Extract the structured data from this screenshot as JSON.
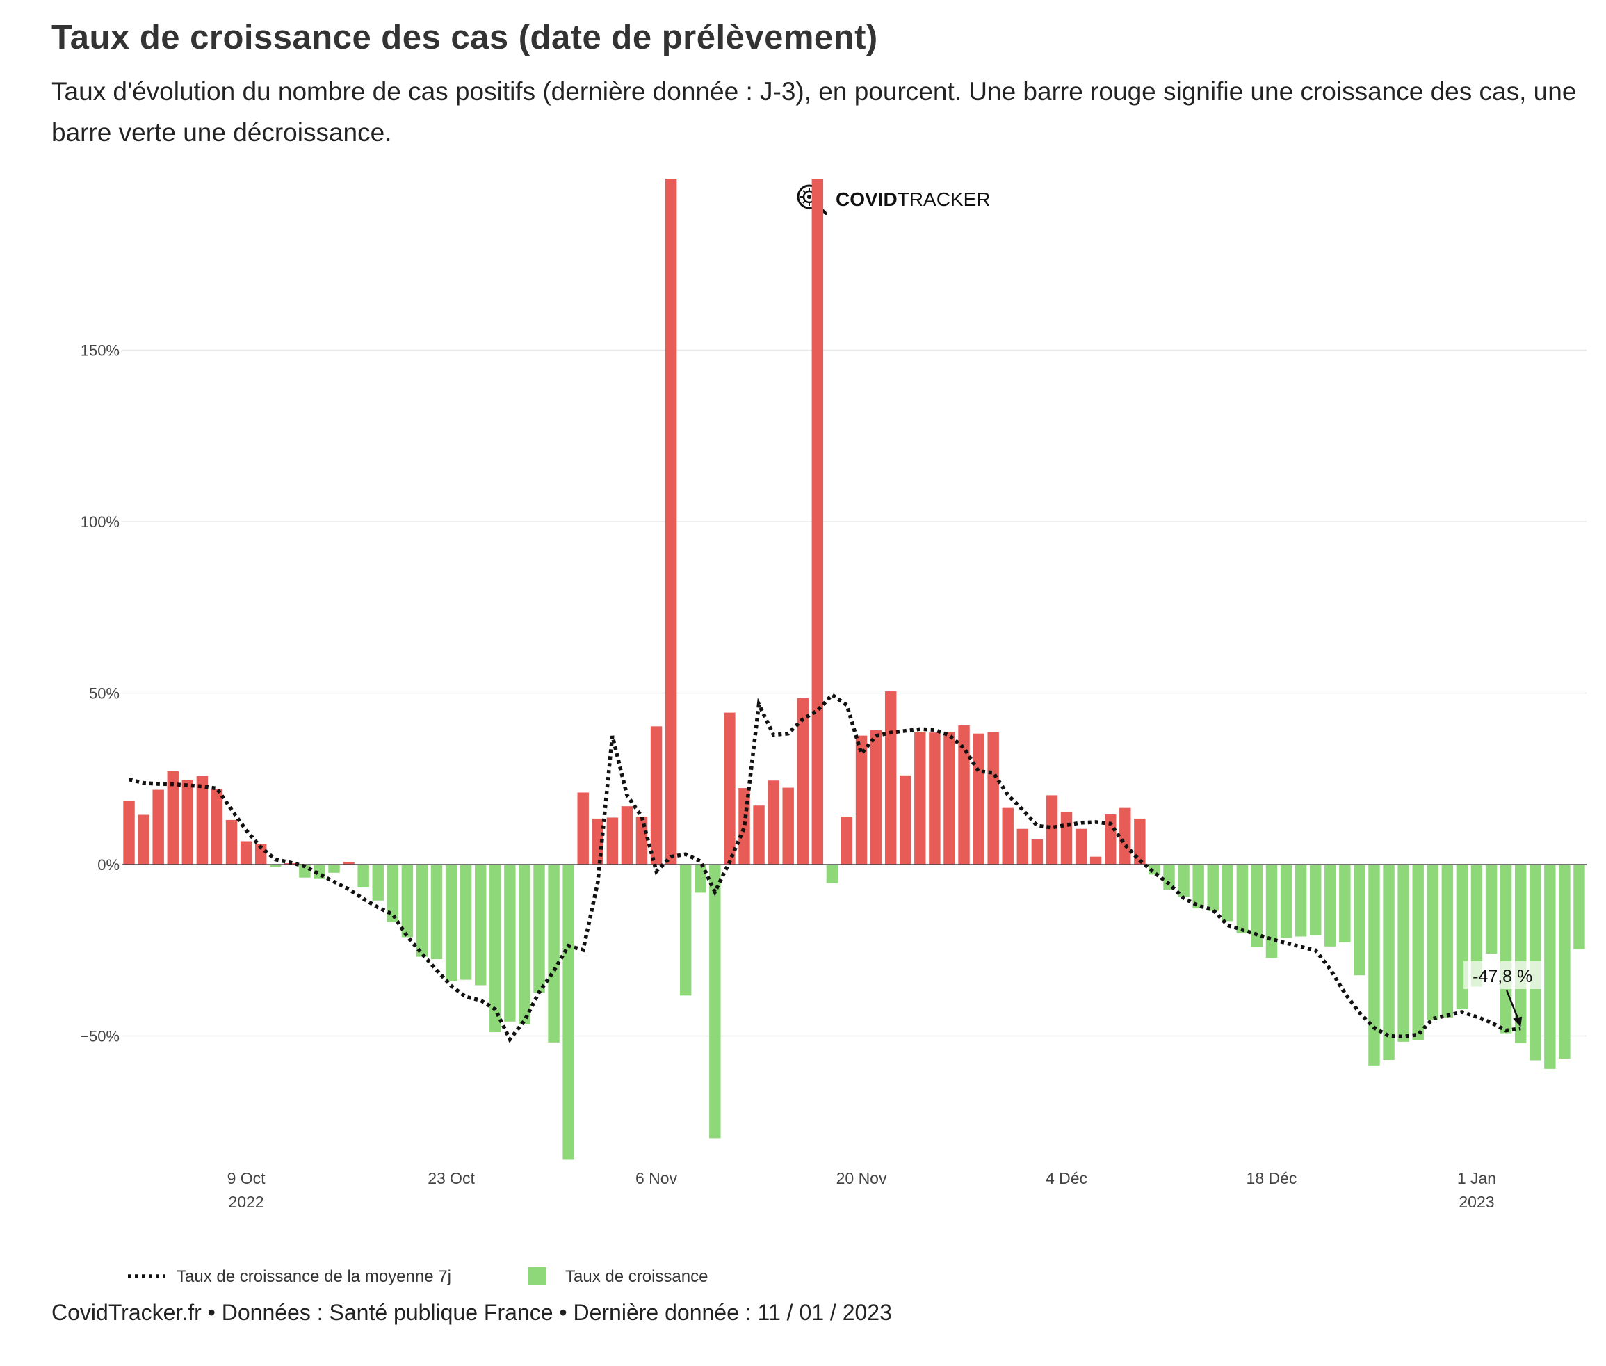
{
  "header": {
    "title": "Taux de croissance des cas (date de prélèvement)",
    "subtitle": "Taux d'évolution du nombre de cas positifs (dernière donnée : J-3), en pourcent. Une barre rouge signifie une croissance des cas, une barre verte une décroissance."
  },
  "logo": {
    "bold": "COVID",
    "regular": "TRACKER",
    "icon": "virus-magnifier-icon"
  },
  "legend": {
    "line_label": "Taux de croissance de la moyenne 7j",
    "bar_label": "Taux de croissance"
  },
  "footer": {
    "text": "CovidTracker.fr • Données : Santé publique France • Dernière donnée : 11 / 01 / 2023"
  },
  "colors": {
    "positive": "#e85c58",
    "negative": "#8fd87a",
    "line": "#111111",
    "grid": "#e8e8e8"
  },
  "chart_data": {
    "type": "bar",
    "ylim": [
      -86,
      200
    ],
    "yticks": [
      -50,
      0,
      50,
      100,
      150
    ],
    "ytick_labels": [
      "−50%",
      "0%",
      "50%",
      "100%",
      "150%"
    ],
    "xticks": [
      {
        "label": "9 Oct",
        "sublabel": "2022",
        "index": 8
      },
      {
        "label": "23 Oct",
        "sublabel": "",
        "index": 22
      },
      {
        "label": "6 Nov",
        "sublabel": "",
        "index": 36
      },
      {
        "label": "20 Nov",
        "sublabel": "",
        "index": 50
      },
      {
        "label": "4 Déc",
        "sublabel": "",
        "index": 64
      },
      {
        "label": "18 Déc",
        "sublabel": "",
        "index": 78
      },
      {
        "label": "1 Jan",
        "sublabel": "2023",
        "index": 92
      }
    ],
    "series": [
      {
        "name": "Taux de croissance",
        "values": [
          18.5,
          14.5,
          21.8,
          27.2,
          24.7,
          25.8,
          22,
          13,
          6.8,
          6,
          -0.7,
          0.4,
          -3.8,
          -4.2,
          -2.4,
          0.8,
          -6.7,
          -10.5,
          -16.8,
          -21.2,
          -26.9,
          -27.6,
          -34,
          -33.6,
          -35.2,
          -48.9,
          -45.8,
          -46.5,
          -37.4,
          -51.9,
          -86.1,
          21,
          13.4,
          13.7,
          17,
          14,
          40.3,
          200,
          -38.2,
          -8.2,
          -79.8,
          44.3,
          22.3,
          17.2,
          24.5,
          22.4,
          48.5,
          200,
          -5.4,
          14,
          37.6,
          39.2,
          50.5,
          26,
          38.7,
          38.5,
          38.7,
          40.6,
          38.2,
          38.6,
          16.5,
          10.4,
          7.3,
          20.2,
          15.3,
          10.4,
          2.3,
          14.6,
          16.5,
          13.4,
          -2.9,
          -7.4,
          -9.4,
          -12.8,
          -13.5,
          -16.5,
          -20,
          -24.1,
          -27.3,
          -21.4,
          -21,
          -20.6,
          -23.9,
          -22.7,
          -32.3,
          -58.6,
          -57,
          -51.7,
          -51.3,
          -45.4,
          -44.6,
          -42.2,
          -35.6,
          -26,
          -49.2,
          -52.1,
          -57.1,
          -59.6,
          -56.6,
          -24.7
        ]
      },
      {
        "name": "Taux de croissance de la moyenne 7j",
        "values": [
          24.8,
          23.8,
          23.5,
          23.4,
          23.1,
          22.8,
          22.2,
          16,
          10,
          5,
          1.5,
          0.6,
          -0.5,
          -2.8,
          -5,
          -7.2,
          -10,
          -12.5,
          -14.5,
          -21,
          -26,
          -30.8,
          -35.4,
          -38.6,
          -39.6,
          -42.2,
          -51,
          -45.5,
          -37.2,
          -31,
          -23.7,
          -24.9,
          -5.2,
          37.5,
          20.2,
          14,
          -2,
          2.3,
          3,
          1,
          -8,
          0.8,
          10.8,
          46.7,
          37.8,
          38.2,
          42.4,
          44.9,
          49.5,
          46.5,
          32.4,
          37.5,
          38.5,
          39,
          39.5,
          39.3,
          37.7,
          34,
          27.2,
          26.8,
          20.3,
          16,
          11.3,
          10.8,
          11.5,
          12.2,
          12.4,
          11.9,
          5.7,
          1.2,
          -2.4,
          -5.6,
          -9.8,
          -12,
          -13.2,
          -17.7,
          -19,
          -20.4,
          -21.8,
          -22.9,
          -24,
          -25,
          -30.5,
          -37.5,
          -43.2,
          -47.6,
          -50,
          -50.2,
          -49.6,
          -45,
          -44,
          -43,
          -44.4,
          -46.1,
          -48.4,
          -47.8
        ]
      }
    ],
    "annotation": {
      "text": "-47,8 %",
      "index": 95,
      "value": -47.8
    }
  }
}
